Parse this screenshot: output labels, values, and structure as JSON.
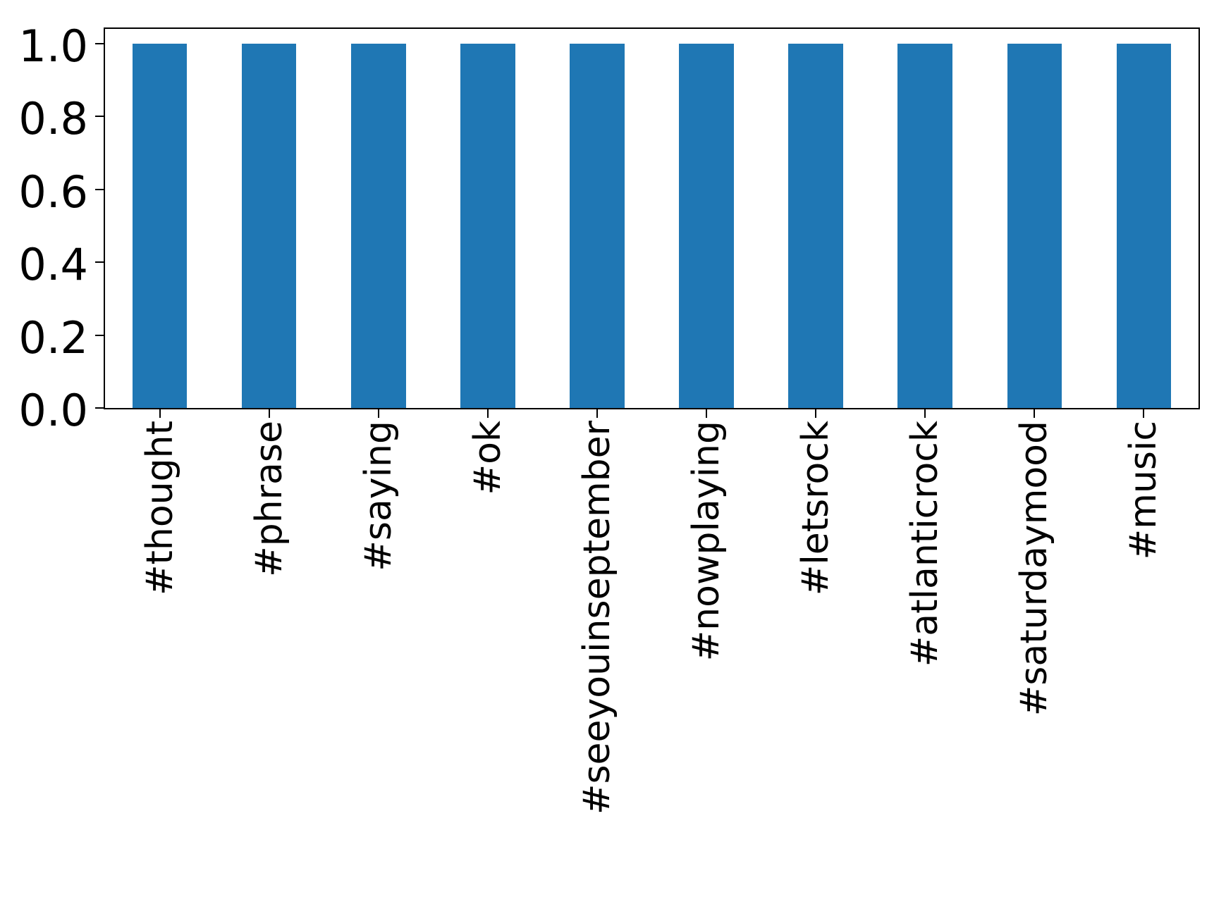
{
  "chart_data": {
    "type": "bar",
    "title": "",
    "xlabel": "",
    "ylabel": "",
    "categories": [
      "#thought",
      "#phrase",
      "#saying",
      "#ok",
      "#seeyouinseptember",
      "#nowplaying",
      "#letsrock",
      "#atlanticrock",
      "#saturdaymood",
      "#music"
    ],
    "values": [
      1.0,
      1.0,
      1.0,
      1.0,
      1.0,
      1.0,
      1.0,
      1.0,
      1.0,
      1.0
    ],
    "ylim": [
      0,
      1.04
    ],
    "yticks": [
      0.0,
      0.2,
      0.4,
      0.6,
      0.8,
      1.0
    ],
    "ytick_labels": [
      "0.0",
      "0.2",
      "0.4",
      "0.6",
      "0.8",
      "1.0"
    ],
    "xtick_rotation": 90,
    "grid": false,
    "legend_position": "none",
    "bar_color": "#1f77b4",
    "bar_width_fraction": 0.5,
    "axis_color": "#000000",
    "background_color": "#ffffff"
  }
}
